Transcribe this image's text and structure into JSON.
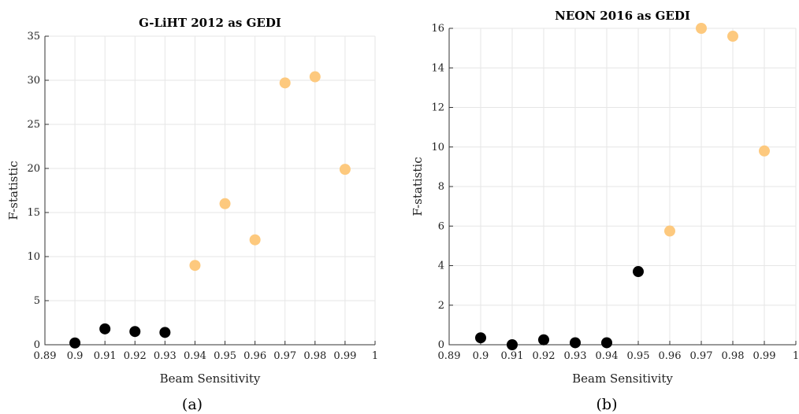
{
  "chart_data": [
    {
      "type": "scatter",
      "panel_label": "(a)",
      "title": "G-LiHT 2012 as GEDI",
      "xlabel": "Beam Sensitivity",
      "ylabel": "F-statistic",
      "xlim": [
        0.89,
        1.0
      ],
      "ylim": [
        0,
        35
      ],
      "xticks": [
        0.89,
        0.9,
        0.91,
        0.92,
        0.93,
        0.94,
        0.95,
        0.96,
        0.97,
        0.98,
        0.99,
        1
      ],
      "xtick_labels": [
        "0.89",
        "0.9",
        "0.91",
        "0.92",
        "0.93",
        "0.94",
        "0.95",
        "0.96",
        "0.97",
        "0.98",
        "0.99",
        "1"
      ],
      "yticks": [
        0,
        5,
        10,
        15,
        20,
        25,
        30,
        35
      ],
      "ytick_labels": [
        "0",
        "5",
        "10",
        "15",
        "20",
        "25",
        "30",
        "35"
      ],
      "grid": true,
      "series": [
        {
          "color": "#000000",
          "x": [
            0.9,
            0.91,
            0.92,
            0.93
          ],
          "y": [
            0.2,
            1.8,
            1.5,
            1.4
          ]
        },
        {
          "color": "#FDC97E",
          "x": [
            0.94,
            0.95,
            0.96,
            0.97,
            0.98,
            0.99
          ],
          "y": [
            9.0,
            16.0,
            11.9,
            29.7,
            30.4,
            19.9
          ]
        }
      ]
    },
    {
      "type": "scatter",
      "panel_label": "(b)",
      "title": "NEON 2016 as GEDI",
      "xlabel": "Beam Sensitivity",
      "ylabel": "F-statistic",
      "xlim": [
        0.89,
        1.0
      ],
      "ylim": [
        0,
        16
      ],
      "xticks": [
        0.89,
        0.9,
        0.91,
        0.92,
        0.93,
        0.94,
        0.95,
        0.96,
        0.97,
        0.98,
        0.99,
        1
      ],
      "xtick_labels": [
        "0.89",
        "0.9",
        "0.91",
        "0.92",
        "0.93",
        "0.94",
        "0.95",
        "0.96",
        "0.97",
        "0.98",
        "0.99",
        "1"
      ],
      "yticks": [
        0,
        2,
        4,
        6,
        8,
        10,
        12,
        14,
        16
      ],
      "ytick_labels": [
        "0",
        "2",
        "4",
        "6",
        "8",
        "10",
        "12",
        "14",
        "16"
      ],
      "grid": true,
      "series": [
        {
          "color": "#000000",
          "x": [
            0.9,
            0.91,
            0.92,
            0.93,
            0.94,
            0.95
          ],
          "y": [
            0.35,
            0.0,
            0.25,
            0.1,
            0.1,
            3.7
          ]
        },
        {
          "color": "#FDC97E",
          "x": [
            0.96,
            0.97,
            0.98,
            0.99
          ],
          "y": [
            5.75,
            16.0,
            15.6,
            9.8
          ]
        }
      ]
    }
  ]
}
